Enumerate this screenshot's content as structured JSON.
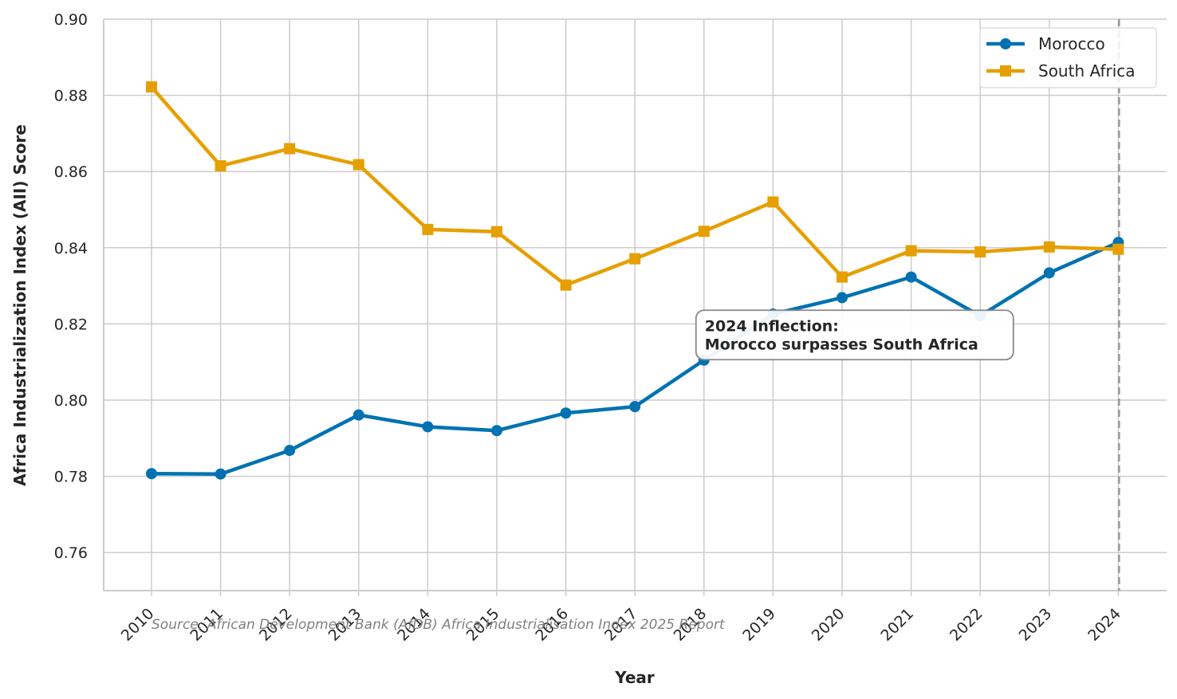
{
  "chart_data": {
    "type": "line",
    "x": [
      "2010",
      "2011",
      "2012",
      "2013",
      "2014",
      "2015",
      "2016",
      "2017",
      "2018",
      "2019",
      "2020",
      "2021",
      "2022",
      "2023",
      "2024"
    ],
    "series": [
      {
        "name": "Morocco",
        "color": "#0072B2",
        "marker": "circle",
        "values": [
          0.7807,
          0.7806,
          0.7868,
          0.7961,
          0.793,
          0.792,
          0.7966,
          0.7983,
          0.8105,
          0.8226,
          0.8269,
          0.8323,
          0.8221,
          0.8334,
          0.8414
        ]
      },
      {
        "name": "South Africa",
        "color": "#E69F00",
        "marker": "square",
        "values": [
          0.8822,
          0.8615,
          0.866,
          0.8618,
          0.8448,
          0.8442,
          0.8302,
          0.8371,
          0.8443,
          0.852,
          0.8323,
          0.8392,
          0.8389,
          0.8402,
          0.8396
        ]
      }
    ],
    "xlabel": "Year",
    "ylabel": "Africa Industrialization Index (AII) Score",
    "ylim": [
      0.75,
      0.9
    ],
    "yticks": [
      "0.76",
      "0.78",
      "0.80",
      "0.82",
      "0.84",
      "0.86",
      "0.88",
      "0.90"
    ],
    "grid": true,
    "legend_position": "top-right",
    "reference_line_x": "2024",
    "annotation": {
      "lines": [
        "2024 Inflection:",
        "Morocco surpasses South Africa"
      ],
      "anchor_x": "2018",
      "anchor_y": 0.8125
    },
    "source": "Source: African Development Bank (AfDB) Africa Industrialisation Index 2025 Report"
  }
}
